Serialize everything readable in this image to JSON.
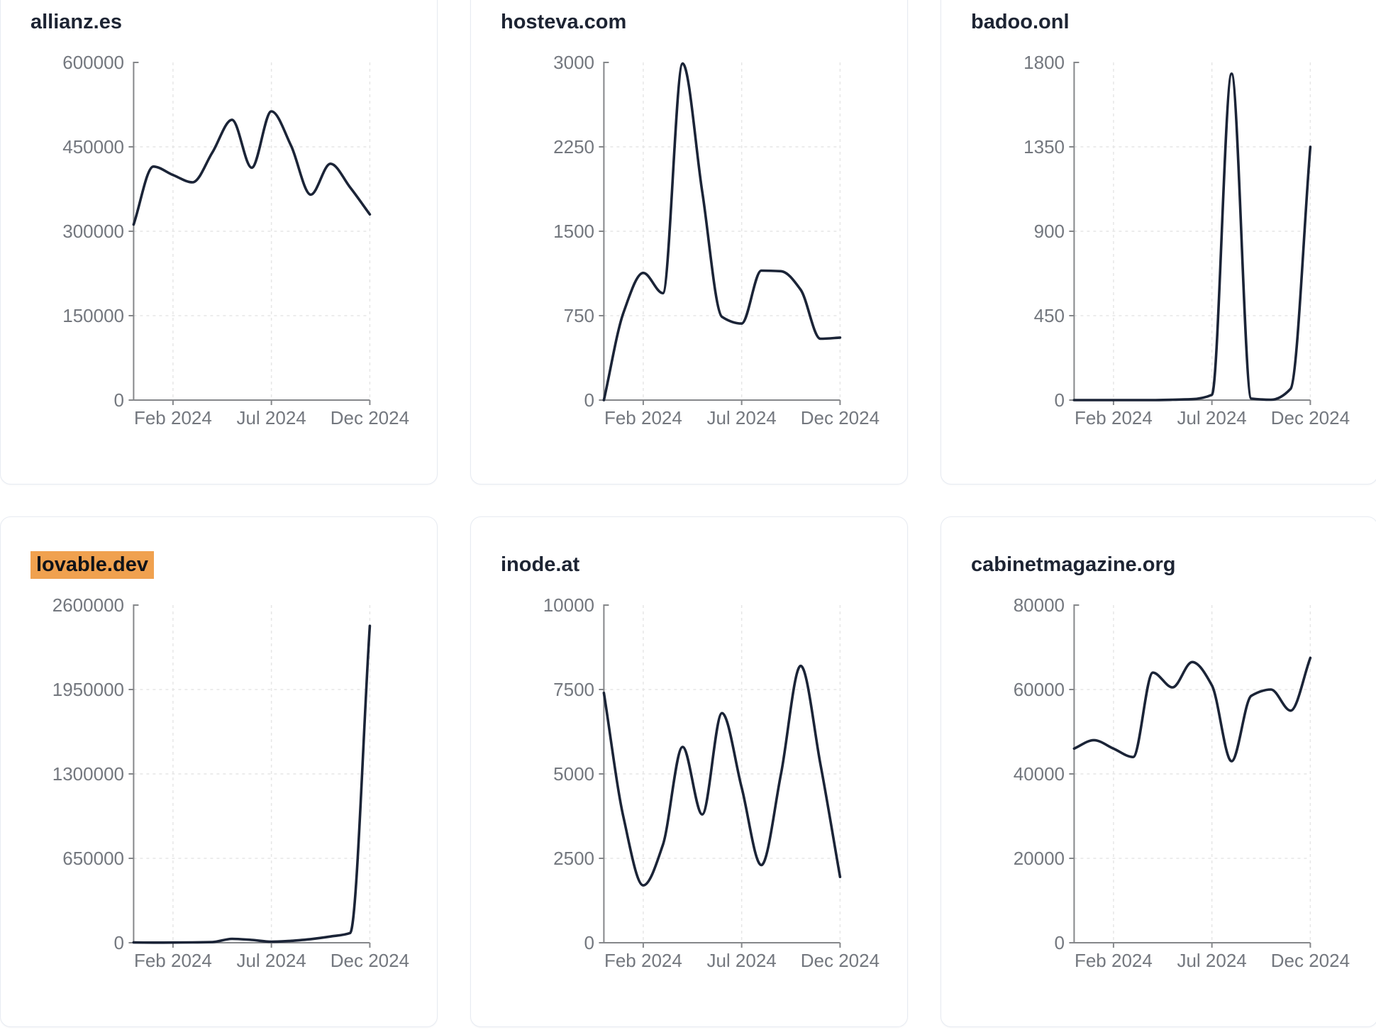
{
  "page": {
    "background": "#ffffff",
    "layout": "3x2-card-grid"
  },
  "style": {
    "line_color": "#1b2437",
    "axis_color": "#85878a",
    "grid_color": "#e6e6e6",
    "tick_label_color": "#73777e",
    "title_color": "#1d2433",
    "highlight_color": "#f0a14f",
    "card_border_color": "#e7ebf2",
    "card_background": "#ffffff"
  },
  "x_axis": {
    "months": [
      "Dec 2023",
      "Jan 2024",
      "Feb 2024",
      "Mar 2024",
      "Apr 2024",
      "May 2024",
      "Jun 2024",
      "Jul 2024",
      "Aug 2024",
      "Sep 2024",
      "Oct 2024",
      "Nov 2024",
      "Dec 2024"
    ],
    "tick_month_indices": [
      2,
      7,
      12
    ],
    "tick_labels": [
      "Feb 2024",
      "Jul 2024",
      "Dec 2024"
    ]
  },
  "chart_data": [
    {
      "type": "line",
      "title": "allianz.es",
      "highlight": false,
      "ylim": [
        0,
        600000
      ],
      "y_ticks": [
        0,
        150000,
        300000,
        450000,
        600000
      ],
      "x_tick_labels": [
        "Feb 2024",
        "Jul 2024",
        "Dec 2024"
      ],
      "x_months": [
        "Dec 2023",
        "Jan 2024",
        "Feb 2024",
        "Mar 2024",
        "Apr 2024",
        "May 2024",
        "Jun 2024",
        "Jul 2024",
        "Aug 2024",
        "Sep 2024",
        "Oct 2024",
        "Nov 2024",
        "Dec 2024"
      ],
      "values": [
        312000,
        415000,
        400000,
        387000,
        440000,
        498000,
        413000,
        513000,
        452000,
        365000,
        420000,
        378000,
        330000
      ],
      "grid": "dashed",
      "legend": "none"
    },
    {
      "type": "line",
      "title": "hosteva.com",
      "highlight": false,
      "ylim": [
        0,
        3000
      ],
      "y_ticks": [
        0,
        750,
        1500,
        2250,
        3000
      ],
      "x_tick_labels": [
        "Feb 2024",
        "Jul 2024",
        "Dec 2024"
      ],
      "x_months": [
        "Dec 2023",
        "Jan 2024",
        "Feb 2024",
        "Mar 2024",
        "Apr 2024",
        "May 2024",
        "Jun 2024",
        "Jul 2024",
        "Aug 2024",
        "Sep 2024",
        "Oct 2024",
        "Nov 2024",
        "Dec 2024"
      ],
      "values": [
        0,
        780,
        1130,
        950,
        2990,
        1850,
        740,
        680,
        1150,
        1145,
        980,
        545,
        555
      ],
      "grid": "dashed",
      "legend": "none"
    },
    {
      "type": "line",
      "title": "badoo.onl",
      "highlight": false,
      "ylim": [
        0,
        1800
      ],
      "y_ticks": [
        0,
        450,
        900,
        1350,
        1800
      ],
      "x_tick_labels": [
        "Feb 2024",
        "Jul 2024",
        "Dec 2024"
      ],
      "x_months": [
        "Dec 2023",
        "Jan 2024",
        "Feb 2024",
        "Mar 2024",
        "Apr 2024",
        "May 2024",
        "Jun 2024",
        "Jul 2024",
        "Aug 2024",
        "Sep 2024",
        "Oct 2024",
        "Nov 2024",
        "Dec 2024"
      ],
      "values": [
        0,
        0,
        0,
        0,
        0,
        2,
        5,
        28,
        1740,
        8,
        2,
        60,
        1350
      ],
      "grid": "dashed",
      "legend": "none"
    },
    {
      "type": "line",
      "title": "lovable.dev",
      "highlight": true,
      "ylim": [
        0,
        2600000
      ],
      "y_ticks": [
        0,
        650000,
        1300000,
        1950000,
        2600000
      ],
      "x_tick_labels": [
        "Feb 2024",
        "Jul 2024",
        "Dec 2024"
      ],
      "x_months": [
        "Dec 2023",
        "Jan 2024",
        "Feb 2024",
        "Mar 2024",
        "Apr 2024",
        "May 2024",
        "Jun 2024",
        "Jul 2024",
        "Aug 2024",
        "Sep 2024",
        "Oct 2024",
        "Nov 2024",
        "Dec 2024"
      ],
      "values": [
        2000,
        1000,
        1500,
        2500,
        5000,
        30000,
        22000,
        8000,
        15000,
        28000,
        48000,
        75000,
        2440000
      ],
      "grid": "dashed",
      "legend": "none"
    },
    {
      "type": "line",
      "title": "inode.at",
      "highlight": false,
      "ylim": [
        0,
        10000
      ],
      "y_ticks": [
        0,
        2500,
        5000,
        7500,
        10000
      ],
      "x_tick_labels": [
        "Feb 2024",
        "Jul 2024",
        "Dec 2024"
      ],
      "x_months": [
        "Dec 2023",
        "Jan 2024",
        "Feb 2024",
        "Mar 2024",
        "Apr 2024",
        "May 2024",
        "Jun 2024",
        "Jul 2024",
        "Aug 2024",
        "Sep 2024",
        "Oct 2024",
        "Nov 2024",
        "Dec 2024"
      ],
      "values": [
        7400,
        3700,
        1700,
        2900,
        5800,
        3800,
        6800,
        4600,
        2300,
        5000,
        8200,
        5300,
        1950
      ],
      "grid": "dashed",
      "legend": "none"
    },
    {
      "type": "line",
      "title": "cabinetmagazine.org",
      "highlight": false,
      "ylim": [
        0,
        80000
      ],
      "y_ticks": [
        0,
        20000,
        40000,
        60000,
        80000
      ],
      "x_tick_labels": [
        "Feb 2024",
        "Jul 2024",
        "Dec 2024"
      ],
      "x_months": [
        "Dec 2023",
        "Jan 2024",
        "Feb 2024",
        "Mar 2024",
        "Apr 2024",
        "May 2024",
        "Jun 2024",
        "Jul 2024",
        "Aug 2024",
        "Sep 2024",
        "Oct 2024",
        "Nov 2024",
        "Dec 2024"
      ],
      "values": [
        46000,
        48000,
        46000,
        44000,
        64000,
        60500,
        66500,
        61000,
        43000,
        58500,
        60000,
        55000,
        67500
      ],
      "grid": "dashed",
      "legend": "none"
    }
  ]
}
